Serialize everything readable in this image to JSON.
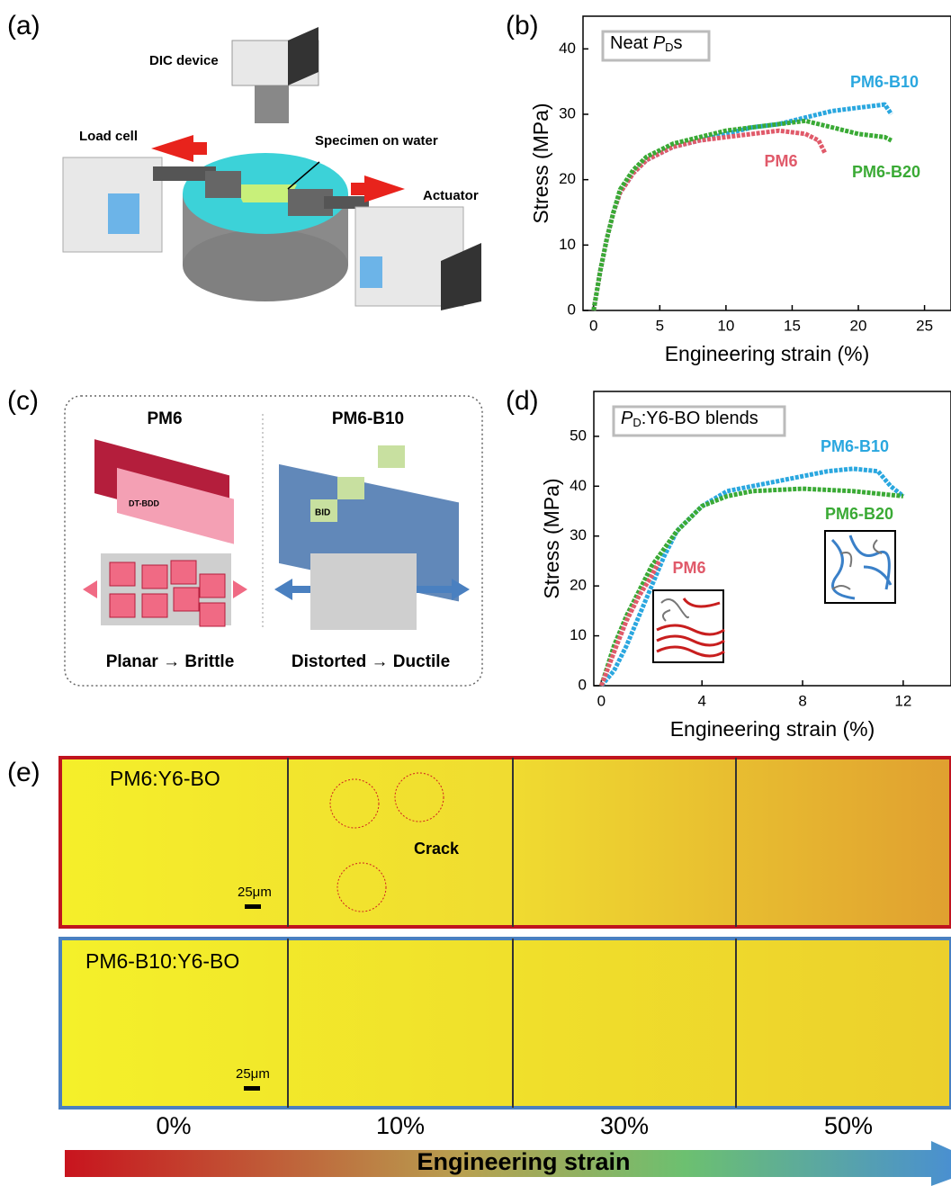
{
  "panel_labels": [
    "(a)",
    "(b)",
    "(c)",
    "(d)",
    "(e)"
  ],
  "diagram_a": {
    "labels": [
      "DIC device",
      "Load cell",
      "Specimen on water",
      "Actuator"
    ]
  },
  "diagram_c": {
    "left_title": "PM6",
    "right_title": "PM6-B10",
    "left_caption": "Planar → Brittle",
    "right_caption": "Distorted → Ductile",
    "unit_labels": [
      "DT-BDD",
      "BID"
    ]
  },
  "panel_e": {
    "rows": [
      "PM6:Y6-BO",
      "PM6-B10:Y6-BO"
    ],
    "crack": "Crack",
    "scale_bars": [
      "25μm",
      "25μm"
    ],
    "strains": [
      "0%",
      "10%",
      "30%",
      "50%"
    ],
    "arrow_label": "Engineering strain"
  },
  "chart_data": [
    {
      "type": "line",
      "title_parts": [
        "Neat ",
        "P",
        "D",
        "s"
      ],
      "x_label": "Engineering strain (%)",
      "y_label": "Stress (MPa)",
      "xlim": [
        -0.8,
        27
      ],
      "ylim": [
        0,
        45
      ],
      "xticks": [
        0,
        5,
        10,
        15,
        20,
        25
      ],
      "yticks": [
        0,
        10,
        20,
        30,
        40
      ],
      "series": [
        {
          "name": "PM6-B10",
          "color": "#2aa7df",
          "x": [
            0,
            0.5,
            1,
            1.5,
            2,
            3,
            4,
            6,
            8,
            10,
            12,
            14,
            16,
            18,
            20,
            22,
            22.5
          ],
          "values": [
            0,
            6,
            11,
            15,
            18,
            21,
            23,
            25,
            26,
            27,
            28,
            28.5,
            29.5,
            30.5,
            31,
            31.5,
            30
          ]
        },
        {
          "name": "PM6",
          "color": "#e05a6a",
          "x": [
            0,
            0.5,
            1,
            1.5,
            2,
            3,
            4,
            6,
            8,
            10,
            12,
            14,
            16,
            17,
            17.5
          ],
          "values": [
            0,
            6,
            11,
            15,
            18,
            21,
            23,
            25,
            26,
            26.5,
            27,
            27.5,
            27,
            26,
            24
          ]
        },
        {
          "name": "PM6-B20",
          "color": "#3aaa35",
          "x": [
            0,
            0.5,
            1,
            1.5,
            2,
            3,
            4,
            6,
            8,
            10,
            12,
            14,
            16,
            18,
            20,
            22,
            22.5
          ],
          "values": [
            0,
            6,
            11,
            15,
            18.5,
            21.5,
            23.5,
            25.5,
            26.5,
            27.5,
            28,
            28.5,
            29,
            28,
            27,
            26.5,
            26
          ]
        }
      ]
    },
    {
      "type": "line",
      "title_parts": [
        "",
        "P",
        "D",
        ":Y6-BO blends"
      ],
      "x_label": "Engineering strain (%)",
      "y_label": "Stress (MPa)",
      "xlim": [
        -0.3,
        13.9
      ],
      "ylim": [
        0,
        59
      ],
      "xticks": [
        0,
        4,
        8,
        12
      ],
      "yticks": [
        0,
        10,
        20,
        30,
        40,
        50
      ],
      "series": [
        {
          "name": "PM6-B10",
          "color": "#2aa7df",
          "x": [
            0,
            0.5,
            1,
            1.5,
            2,
            2.5,
            3,
            4,
            5,
            6,
            7,
            8,
            9,
            10,
            11,
            11.5,
            12
          ],
          "values": [
            0,
            3,
            8,
            14,
            20,
            26,
            31,
            36,
            39,
            40,
            41,
            42,
            43,
            43.5,
            43,
            40,
            38
          ]
        },
        {
          "name": "PM6-B20",
          "color": "#3aaa35",
          "x": [
            0,
            0.5,
            1,
            1.5,
            2,
            3,
            4,
            5,
            6,
            8,
            10,
            11,
            12
          ],
          "values": [
            0,
            8,
            14,
            19,
            24,
            31,
            36,
            38,
            39,
            39.5,
            39,
            38.5,
            38
          ]
        },
        {
          "name": "PM6",
          "color": "#e05a6a",
          "x": [
            0,
            0.3,
            0.6,
            1,
            1.5,
            2,
            2.3
          ],
          "values": [
            0,
            4,
            8,
            13,
            18,
            22,
            25
          ]
        }
      ]
    }
  ]
}
